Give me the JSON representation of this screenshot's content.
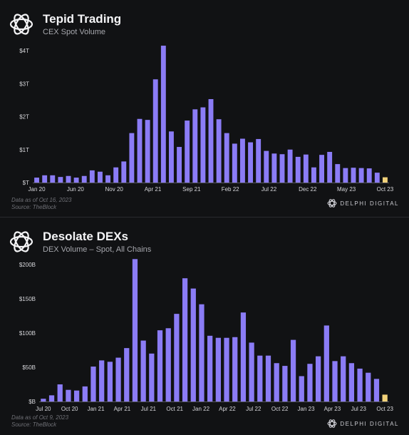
{
  "colors": {
    "bar": "#8b7cf6",
    "highlight": "#f2d27a",
    "axis": "#55565c",
    "tick_text": "#d6d6da"
  },
  "brand": {
    "name": "DELPHI DIGITAL",
    "logo_icon": "flower-logo-icon"
  },
  "charts": [
    {
      "title": "Tepid Trading",
      "subtitle": "CEX Spot Volume",
      "note": "Data as of Oct 16, 2023",
      "source": "Source: TheBlock"
    },
    {
      "title": "Desolate DEXs",
      "subtitle": "DEX Volume – Spot, All Chains",
      "note": "Data as of Oct 9, 2023",
      "source": "Source: TheBlock"
    }
  ],
  "chart_data": [
    {
      "type": "bar",
      "title": "Tepid Trading",
      "subtitle": "CEX Spot Volume",
      "x_ticks": [
        "Jan 20",
        "Jun 20",
        "Nov 20",
        "Apr 21",
        "Sep 21",
        "Feb 22",
        "Jul 22",
        "Dec 22",
        "May 23",
        "Oct 23"
      ],
      "y_ticks": [
        {
          "value": 0,
          "label": "$T"
        },
        {
          "value": 1,
          "label": "$1T"
        },
        {
          "value": 2,
          "label": "$2T"
        },
        {
          "value": 3,
          "label": "$3T"
        },
        {
          "value": 4,
          "label": "$4T"
        }
      ],
      "ylim": [
        0,
        4.0
      ],
      "unit": "trillion USD",
      "highlight_last": true,
      "values": [
        0.15,
        0.22,
        0.22,
        0.17,
        0.2,
        0.15,
        0.2,
        0.37,
        0.33,
        0.22,
        0.46,
        0.64,
        1.5,
        1.93,
        1.9,
        3.13,
        4.15,
        1.55,
        1.08,
        1.88,
        2.22,
        2.28,
        2.53,
        1.92,
        1.5,
        1.18,
        1.33,
        1.22,
        1.32,
        0.96,
        0.88,
        0.86,
        1.0,
        0.78,
        0.85,
        0.46,
        0.84,
        0.93,
        0.56,
        0.44,
        0.45,
        0.44,
        0.43,
        0.3,
        0.16
      ]
    },
    {
      "type": "bar",
      "title": "Desolate DEXs",
      "subtitle": "DEX Volume – Spot, All Chains",
      "x_ticks": [
        "Jul 20",
        "Oct 20",
        "Jan 21",
        "Apr 21",
        "Jul 21",
        "Oct 21",
        "Jan 22",
        "Apr 22",
        "Jul 22",
        "Oct 22",
        "Jan 23",
        "Apr 23",
        "Jul 23",
        "Oct 23"
      ],
      "y_ticks": [
        {
          "value": 0,
          "label": "$B"
        },
        {
          "value": 50,
          "label": "$50B"
        },
        {
          "value": 100,
          "label": "$100B"
        },
        {
          "value": 150,
          "label": "$150B"
        },
        {
          "value": 200,
          "label": "$200B"
        }
      ],
      "ylim": [
        0,
        200
      ],
      "unit": "billion USD",
      "highlight_last": true,
      "values": [
        4,
        9,
        25,
        17,
        16,
        22,
        51,
        60,
        58,
        64,
        78,
        208,
        89,
        70,
        104,
        107,
        128,
        180,
        165,
        142,
        96,
        93,
        93,
        94,
        130,
        86,
        67,
        67,
        56,
        52,
        90,
        37,
        55,
        66,
        111,
        59,
        66,
        56,
        48,
        42,
        33,
        10
      ]
    }
  ]
}
